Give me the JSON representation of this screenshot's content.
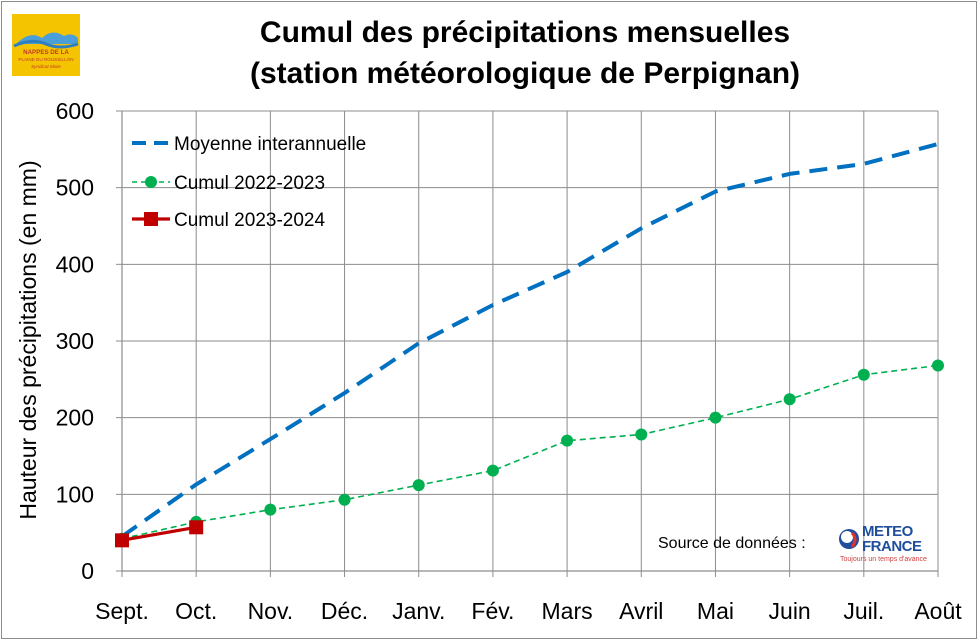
{
  "logo": {
    "lines": [
      "NAPPES DE LA",
      "PLAINE DU ROUSSILLON",
      "Syndicat Mixte"
    ]
  },
  "source": {
    "label": "Source de données :",
    "logo_line1": "METEO",
    "logo_line2": "FRANCE",
    "logo_tagline": "Toujours un temps d'avance"
  },
  "colors": {
    "moyenne": "#0070c0",
    "cumul_2022_2023": "#00b050",
    "cumul_2023_2024": "#c00000",
    "grid": "#8c8c8c"
  },
  "chart_data": {
    "type": "line",
    "title": [
      "Cumul des précipitations mensuelles",
      "(station météorologique de Perpignan)"
    ],
    "xlabel": "",
    "ylabel": "Hauteur des précipitations (en mm)",
    "ylim": [
      0,
      600
    ],
    "yticks": [
      0,
      100,
      200,
      300,
      400,
      500,
      600
    ],
    "grid": true,
    "legend": "top-left",
    "categories": [
      "Sept.",
      "Oct.",
      "Nov.",
      "Déc.",
      "Janv.",
      "Fév.",
      "Mars",
      "Avril",
      "Mai",
      "Juin",
      "Juil.",
      "Août"
    ],
    "series": [
      {
        "name": "Moyenne interannuelle",
        "style": "dashed",
        "color": "#0070c0",
        "values": [
          45,
          113,
          172,
          232,
          297,
          347,
          390,
          447,
          495,
          518,
          531,
          557
        ]
      },
      {
        "name": "Cumul 2022-2023",
        "style": "dashed-markers",
        "marker": "circle",
        "color": "#00b050",
        "values": [
          42,
          64,
          80,
          93,
          112,
          131,
          170,
          178,
          200,
          224,
          256,
          268
        ]
      },
      {
        "name": "Cumul 2023-2024",
        "style": "solid-markers",
        "marker": "square",
        "color": "#c00000",
        "values": [
          40,
          57,
          null,
          null,
          null,
          null,
          null,
          null,
          null,
          null,
          null,
          null
        ]
      }
    ]
  }
}
